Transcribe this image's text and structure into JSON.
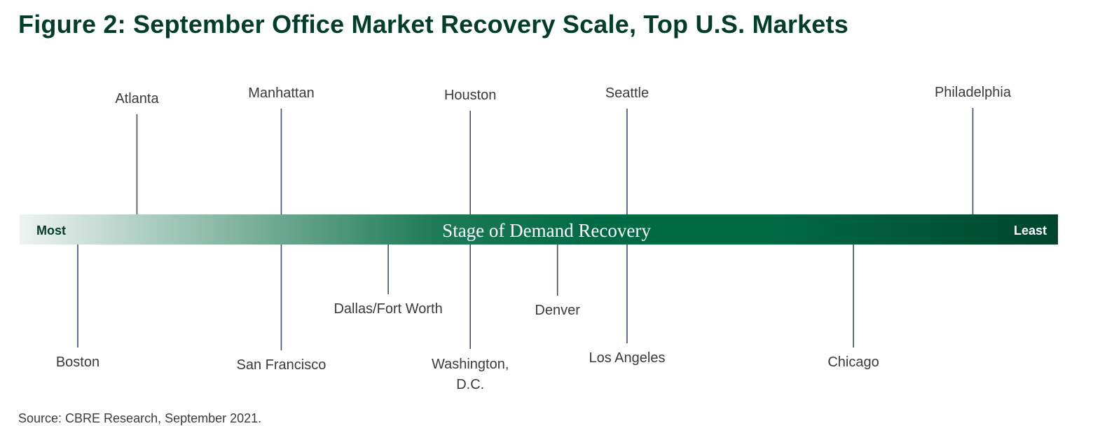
{
  "title": "Figure 2: September Office Market Recovery Scale, Top U.S. Markets",
  "source": "Source: CBRE Research, September 2021.",
  "colors": {
    "title": "#003d2b",
    "bar_start": "#eef3f1",
    "bar_mid": "#1e7a58",
    "bar_dark": "#006a45",
    "bar_end": "#00452d",
    "leader": "#3d4b6b"
  },
  "chart_data": {
    "type": "scale",
    "bar_label": "Stage of Demand Recovery",
    "left_label": "Most",
    "right_label": "Least",
    "markets_above": [
      {
        "name": "Atlanta",
        "position": 0.113
      },
      {
        "name": "Manhattan",
        "position": 0.252
      },
      {
        "name": "Houston",
        "position": 0.434
      },
      {
        "name": "Seattle",
        "position": 0.585
      },
      {
        "name": "Philadelphia",
        "position": 0.918
      }
    ],
    "markets_below": [
      {
        "name": "Boston",
        "position": 0.056
      },
      {
        "name": "San Francisco",
        "position": 0.252
      },
      {
        "name": "Dallas/Fort Worth",
        "position": 0.355
      },
      {
        "name": "Washington, D.C.",
        "position": 0.434
      },
      {
        "name": "Denver",
        "position": 0.518
      },
      {
        "name": "Los Angeles",
        "position": 0.585
      },
      {
        "name": "Chicago",
        "position": 0.803
      }
    ]
  }
}
